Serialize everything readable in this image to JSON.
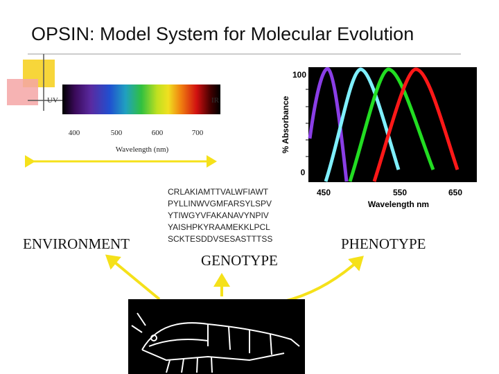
{
  "title": "OPSIN: Model System for Molecular Evolution",
  "spectrum": {
    "uv": "UV",
    "ir": "IR",
    "ticks": [
      "400",
      "500",
      "600",
      "700"
    ],
    "axis_label": "Wavelength (nm)"
  },
  "absorbance": {
    "y_label": "% Absorbance",
    "y_ticks": [
      "100",
      "0"
    ],
    "x_ticks": [
      "450",
      "550",
      "650"
    ],
    "x_label": "Wavelength  nm"
  },
  "sequence": [
    "CRLAKIAMTTVALWFIAWT",
    "PYLLINWVGMFARSYLSPV",
    "YTIWGYVFAKANAVYNPIV",
    "YAISHPKYRAAMEKKLPCL",
    "SCKTESDDVSESASTTTSS"
  ],
  "labels": {
    "environment": "ENVIRONMENT",
    "genotype": "GENOTYPE",
    "phenotype": "PHENOTYPE"
  }
}
